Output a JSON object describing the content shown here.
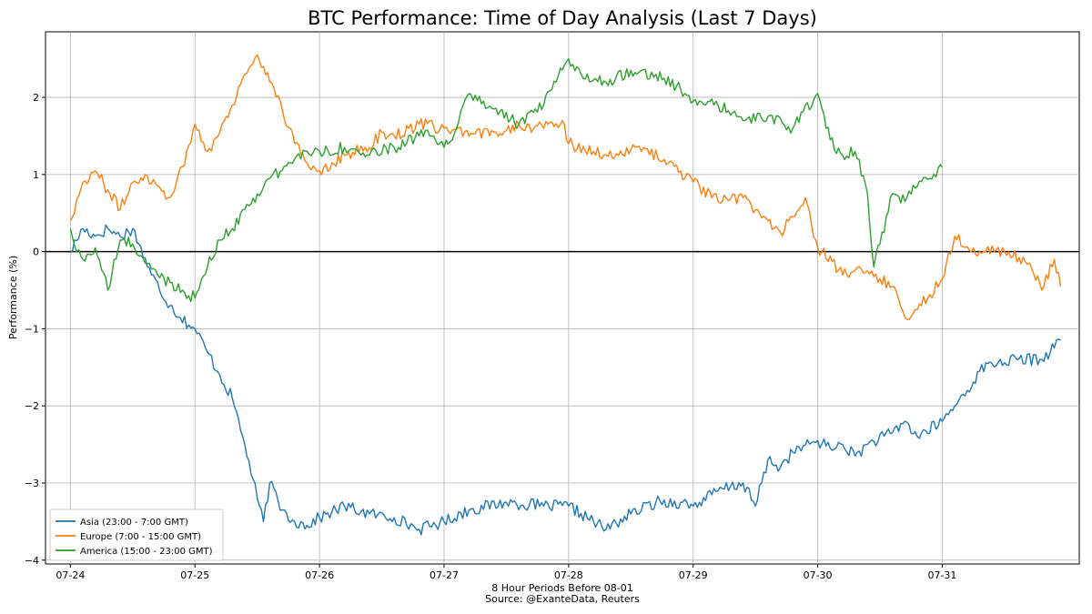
{
  "chart_data": {
    "type": "line",
    "title": "BTC Performance: Time of Day Analysis (Last 7 Days)",
    "xlabel": "8 Hour Periods Before 08-01",
    "source": "Source: @ExanteData, Reuters",
    "ylabel": "Performance (%)",
    "x_tick_labels": [
      "07-24",
      "07-25",
      "07-26",
      "07-27",
      "07-28",
      "07-29",
      "07-30",
      "07-31"
    ],
    "xlim": [
      -0.2,
      8.1
    ],
    "ylim": [
      -4.05,
      2.85
    ],
    "y_ticks": [
      -4,
      -3,
      -2,
      -1,
      0,
      1,
      2
    ],
    "y_tick_labels": [
      "−4",
      "−3",
      "−2",
      "−1",
      "0",
      "1",
      "2"
    ],
    "grid": true,
    "zero_line": true,
    "legend_position": "lower-left",
    "series": [
      {
        "name": "Asia (23:00 - 7:00 GMT)",
        "color": "#1f77b4",
        "x": [
          0,
          0.1,
          0.2,
          0.3,
          0.4,
          0.5,
          0.55,
          0.65,
          0.8,
          0.95,
          1.0,
          1.1,
          1.2,
          1.3,
          1.4,
          1.5,
          1.55,
          1.6,
          1.7,
          1.8,
          1.9,
          2.0,
          2.2,
          2.4,
          2.6,
          2.8,
          3.0,
          3.2,
          3.5,
          3.8,
          4.0,
          4.2,
          4.3,
          4.5,
          4.7,
          4.9,
          5.0,
          5.2,
          5.4,
          5.5,
          5.6,
          5.7,
          5.8,
          6.0,
          6.1,
          6.2,
          6.3,
          6.4,
          6.6,
          6.7,
          6.8,
          7.0,
          7.1,
          7.2,
          7.3,
          7.4,
          7.6,
          7.8,
          7.95
        ],
        "y": [
          0.0,
          0.3,
          0.2,
          0.3,
          0.2,
          0.3,
          0.1,
          -0.3,
          -0.7,
          -0.95,
          -1.0,
          -1.3,
          -1.6,
          -1.9,
          -2.5,
          -3.2,
          -3.5,
          -3.0,
          -3.35,
          -3.5,
          -3.55,
          -3.45,
          -3.3,
          -3.4,
          -3.45,
          -3.6,
          -3.5,
          -3.35,
          -3.25,
          -3.3,
          -3.3,
          -3.5,
          -3.6,
          -3.4,
          -3.25,
          -3.25,
          -3.3,
          -3.1,
          -3.0,
          -3.3,
          -2.7,
          -2.8,
          -2.6,
          -2.45,
          -2.55,
          -2.5,
          -2.65,
          -2.5,
          -2.35,
          -2.2,
          -2.4,
          -2.2,
          -2.0,
          -1.8,
          -1.55,
          -1.45,
          -1.4,
          -1.4,
          -1.15
        ]
      },
      {
        "name": "Europe (7:00 - 15:00 GMT)",
        "color": "#ff7f0e",
        "x": [
          0,
          0.1,
          0.2,
          0.3,
          0.4,
          0.5,
          0.6,
          0.7,
          0.8,
          0.9,
          1.0,
          1.1,
          1.2,
          1.3,
          1.4,
          1.5,
          1.55,
          1.6,
          1.7,
          1.8,
          1.9,
          2.0,
          2.1,
          2.2,
          2.4,
          2.5,
          2.6,
          2.8,
          3.0,
          3.2,
          3.4,
          3.6,
          3.8,
          3.95,
          4.0,
          4.2,
          4.4,
          4.6,
          4.8,
          5.0,
          5.2,
          5.4,
          5.6,
          5.7,
          5.8,
          5.9,
          6.0,
          6.2,
          6.4,
          6.6,
          6.7,
          6.8,
          7.0,
          7.1,
          7.3,
          7.5,
          7.7,
          7.8,
          7.9,
          7.95
        ],
        "y": [
          0.4,
          0.9,
          1.05,
          0.8,
          0.55,
          0.9,
          1.0,
          0.85,
          0.7,
          1.1,
          1.65,
          1.3,
          1.55,
          1.9,
          2.3,
          2.55,
          2.4,
          2.2,
          1.85,
          1.4,
          1.15,
          1.05,
          1.15,
          1.25,
          1.35,
          1.55,
          1.5,
          1.65,
          1.6,
          1.5,
          1.55,
          1.65,
          1.6,
          1.7,
          1.4,
          1.3,
          1.25,
          1.35,
          1.15,
          0.9,
          0.65,
          0.7,
          0.4,
          0.25,
          0.45,
          0.7,
          0.05,
          -0.3,
          -0.25,
          -0.45,
          -0.85,
          -0.75,
          -0.35,
          0.2,
          0.0,
          0.0,
          -0.15,
          -0.5,
          -0.1,
          -0.45
        ]
      },
      {
        "name": "America (15:00 - 23:00 GMT)",
        "color": "#2ca02c",
        "x": [
          0,
          0.05,
          0.1,
          0.2,
          0.3,
          0.4,
          0.5,
          0.6,
          0.7,
          0.8,
          0.9,
          1.0,
          1.1,
          1.2,
          1.3,
          1.4,
          1.5,
          1.6,
          1.7,
          1.8,
          1.9,
          2.0,
          2.2,
          2.4,
          2.6,
          2.8,
          2.9,
          3.0,
          3.1,
          3.2,
          3.4,
          3.6,
          3.8,
          3.9,
          4.0,
          4.1,
          4.3,
          4.5,
          4.7,
          4.9,
          5.0,
          5.2,
          5.4,
          5.6,
          5.8,
          6.0,
          6.1,
          6.2,
          6.3,
          6.4,
          6.45,
          6.5,
          6.6,
          6.7,
          6.8,
          6.9,
          7.0
        ],
        "y": [
          0.3,
          0.0,
          -0.1,
          0.05,
          -0.5,
          0.15,
          0.1,
          -0.15,
          -0.3,
          -0.4,
          -0.5,
          -0.6,
          -0.2,
          0.15,
          0.3,
          0.55,
          0.75,
          0.95,
          1.05,
          1.2,
          1.3,
          1.3,
          1.35,
          1.25,
          1.35,
          1.5,
          1.5,
          1.35,
          1.6,
          2.05,
          1.85,
          1.65,
          1.9,
          2.2,
          2.5,
          2.3,
          2.2,
          2.35,
          2.3,
          2.1,
          1.95,
          1.9,
          1.7,
          1.75,
          1.6,
          2.05,
          1.45,
          1.25,
          1.3,
          0.75,
          -0.2,
          0.1,
          0.75,
          0.65,
          0.85,
          0.95,
          1.1
        ]
      }
    ]
  }
}
